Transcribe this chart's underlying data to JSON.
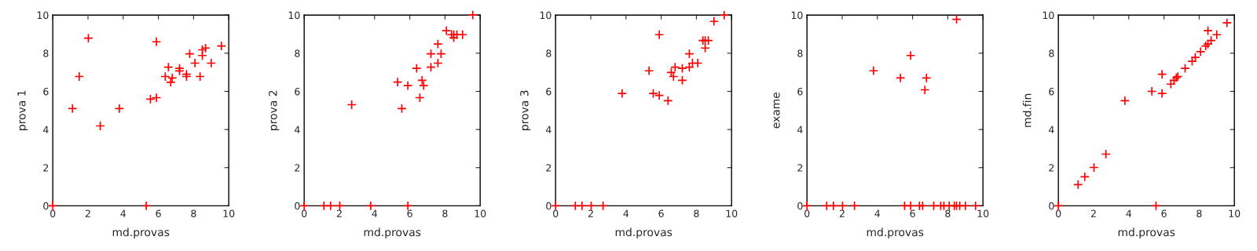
{
  "chart_data": [
    {
      "type": "scatter",
      "xlabel": "md.provas",
      "ylabel": "prova 1",
      "xlim": [
        0,
        10
      ],
      "ylim": [
        0,
        10
      ],
      "xticks": [
        0,
        2,
        4,
        6,
        8,
        10
      ],
      "yticks": [
        0,
        2,
        4,
        6,
        8,
        10
      ],
      "marker": "cross",
      "grid": false,
      "legend": false,
      "series": [
        {
          "color": "#ff0000",
          "x": [
            0,
            1.12,
            1.5,
            2.02,
            2.7,
            3.78,
            5.31,
            5.55,
            5.89,
            5.89,
            6.39,
            6.57,
            6.7,
            6.79,
            7.2,
            7.2,
            7.6,
            7.6,
            7.78,
            8.08,
            8.37,
            8.5,
            8.5,
            8.68,
            9.0,
            9.58
          ],
          "values": [
            0,
            5.1,
            6.78,
            8.79,
            4.19,
            5.1,
            0,
            5.59,
            5.67,
            8.6,
            6.78,
            7.27,
            6.48,
            6.7,
            7.21,
            7.07,
            6.9,
            6.78,
            7.97,
            7.48,
            6.78,
            7.88,
            8.18,
            8.27,
            7.48,
            8.38
          ]
        }
      ]
    },
    {
      "type": "scatter",
      "xlabel": "md.provas",
      "ylabel": "prova 2",
      "xlim": [
        0,
        10
      ],
      "ylim": [
        0,
        10
      ],
      "xticks": [
        0,
        2,
        4,
        6,
        8,
        10
      ],
      "yticks": [
        0,
        2,
        4,
        6,
        8,
        10
      ],
      "marker": "cross",
      "grid": false,
      "legend": false,
      "series": [
        {
          "color": "#ff0000",
          "x": [
            0,
            1.12,
            1.5,
            2.02,
            2.7,
            3.78,
            5.31,
            5.55,
            5.89,
            5.89,
            6.39,
            6.57,
            6.7,
            6.79,
            7.2,
            7.2,
            7.6,
            7.6,
            7.78,
            8.08,
            8.37,
            8.5,
            8.5,
            8.68,
            9.0,
            9.58
          ],
          "values": [
            0,
            0,
            0,
            0,
            5.3,
            0,
            6.49,
            5.1,
            6.3,
            0,
            7.21,
            5.67,
            6.58,
            6.3,
            7.27,
            7.97,
            7.48,
            8.48,
            7.97,
            9.18,
            8.97,
            8.97,
            8.81,
            8.97,
            8.97,
            10.0
          ]
        }
      ]
    },
    {
      "type": "scatter",
      "xlabel": "md.provas",
      "ylabel": "prova 3",
      "xlim": [
        0,
        10
      ],
      "ylim": [
        0,
        10
      ],
      "xticks": [
        0,
        2,
        4,
        6,
        8,
        10
      ],
      "yticks": [
        0,
        2,
        4,
        6,
        8,
        10
      ],
      "marker": "cross",
      "grid": false,
      "legend": false,
      "series": [
        {
          "color": "#ff0000",
          "x": [
            0,
            1.12,
            1.5,
            2.02,
            2.7,
            3.78,
            5.31,
            5.55,
            5.89,
            5.89,
            6.39,
            6.57,
            6.7,
            6.79,
            7.2,
            7.2,
            7.6,
            7.6,
            7.78,
            8.08,
            8.37,
            8.5,
            8.5,
            8.68,
            9.0,
            9.58
          ],
          "values": [
            0,
            0,
            0,
            0,
            0,
            5.89,
            7.08,
            5.89,
            5.79,
            8.97,
            5.51,
            6.99,
            6.78,
            7.27,
            6.58,
            7.21,
            7.27,
            7.97,
            7.48,
            7.48,
            8.67,
            8.67,
            8.27,
            8.67,
            9.67,
            9.99
          ]
        }
      ]
    },
    {
      "type": "scatter",
      "xlabel": "md.provas",
      "ylabel": "exame",
      "xlim": [
        0,
        10
      ],
      "ylim": [
        0,
        10
      ],
      "xticks": [
        0,
        2,
        4,
        6,
        8,
        10
      ],
      "yticks": [
        0,
        2,
        4,
        6,
        8,
        10
      ],
      "marker": "cross",
      "grid": false,
      "legend": false,
      "series": [
        {
          "color": "#ff0000",
          "x": [
            0,
            1.12,
            1.5,
            2.02,
            2.7,
            3.78,
            5.31,
            5.55,
            5.89,
            5.89,
            6.39,
            6.57,
            6.7,
            6.79,
            7.2,
            7.6,
            7.78,
            8.08,
            8.37,
            8.5,
            8.5,
            8.68,
            9.0,
            9.58
          ],
          "values": [
            0,
            0,
            0,
            0,
            0,
            7.08,
            6.7,
            0,
            7.88,
            0,
            0,
            0,
            6.08,
            6.7,
            0,
            0,
            0,
            0,
            0,
            9.78,
            0,
            0,
            0,
            0
          ]
        }
      ]
    },
    {
      "type": "scatter",
      "xlabel": "md.provas",
      "ylabel": "md.fin",
      "xlim": [
        0,
        10
      ],
      "ylim": [
        0,
        10
      ],
      "xticks": [
        0,
        2,
        4,
        6,
        8,
        10
      ],
      "yticks": [
        0,
        2,
        4,
        6,
        8,
        10
      ],
      "marker": "cross",
      "grid": false,
      "legend": false,
      "series": [
        {
          "color": "#ff0000",
          "x": [
            0,
            1.12,
            1.5,
            2.02,
            2.7,
            3.78,
            5.31,
            5.55,
            5.89,
            5.89,
            6.39,
            6.57,
            6.7,
            6.79,
            7.2,
            7.6,
            7.78,
            8.08,
            8.37,
            8.5,
            8.5,
            8.68,
            9.0,
            9.58
          ],
          "values": [
            0,
            1.11,
            1.52,
            2.01,
            2.71,
            5.51,
            6.0,
            0,
            5.89,
            6.9,
            6.38,
            6.58,
            6.71,
            6.78,
            7.21,
            7.58,
            7.78,
            8.08,
            8.38,
            8.48,
            9.18,
            8.67,
            8.97,
            9.59
          ]
        }
      ]
    }
  ]
}
